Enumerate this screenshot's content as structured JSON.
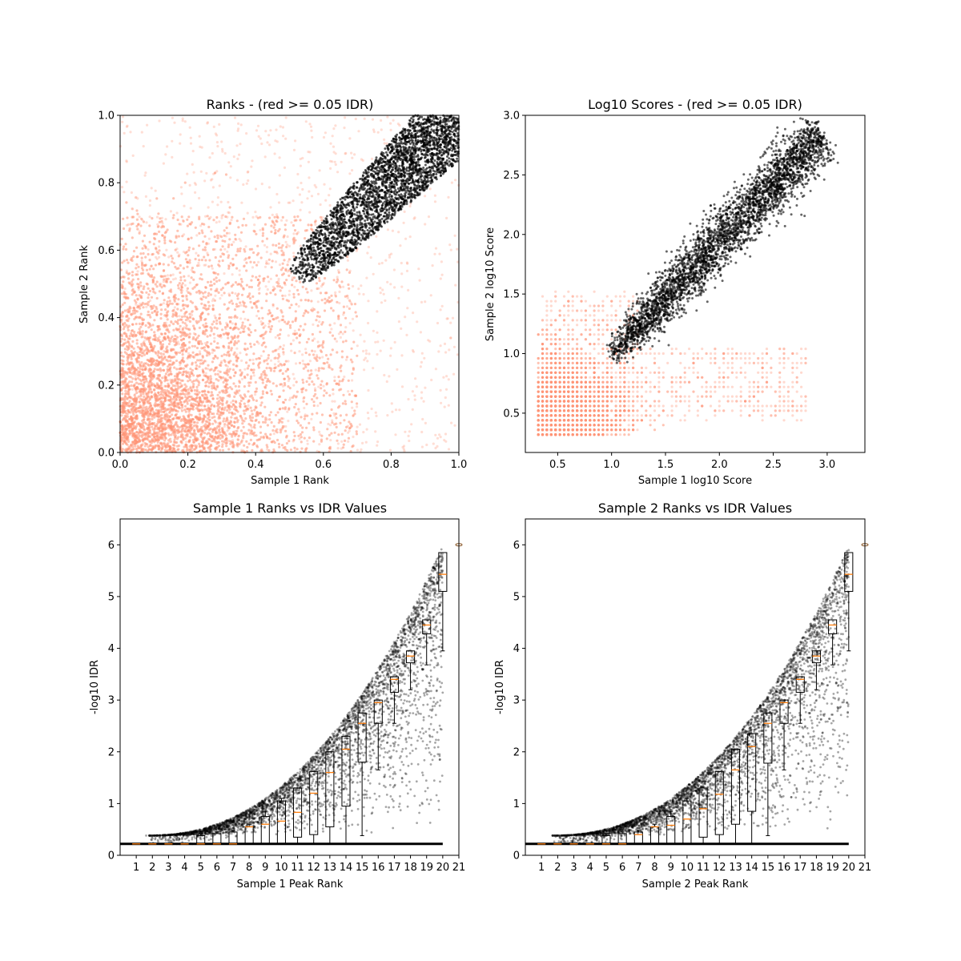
{
  "chart_data": [
    {
      "type": "scatter",
      "title": "Ranks - (red >= 0.05 IDR)",
      "xlabel": "Sample 1 Rank",
      "ylabel": "Sample 2 Rank",
      "xlim": [
        0.0,
        1.0
      ],
      "ylim": [
        0.0,
        1.0
      ],
      "xticks": [
        "0.0",
        "0.2",
        "0.4",
        "0.6",
        "0.8",
        "1.0"
      ],
      "yticks": [
        "0.0",
        "0.2",
        "0.4",
        "0.6",
        "0.8",
        "1.0"
      ],
      "colors": {
        "pass": "#000000",
        "fail": "#ff9375"
      },
      "series": [
        {
          "name": "",
          "color": "#ff9375",
          "region": "rank space, spread over [0,1]x[0,1], densest near origin",
          "x": [
            0.05,
            0.12,
            0.2,
            0.3,
            0.35,
            0.45,
            0.55,
            0.6,
            0.7,
            0.8,
            0.25,
            0.1
          ],
          "y": [
            0.05,
            0.2,
            0.1,
            0.35,
            0.25,
            0.45,
            0.2,
            0.4,
            0.3,
            0.55,
            0.7,
            0.9
          ]
        },
        {
          "name": "",
          "color": "#000000",
          "region": "tight band along diagonal from (0.5,0.5) to (1,1)",
          "x": [
            0.5,
            0.6,
            0.7,
            0.8,
            0.9,
            1.0
          ],
          "y": [
            0.52,
            0.64,
            0.73,
            0.82,
            0.91,
            1.0
          ]
        }
      ]
    },
    {
      "type": "scatter",
      "title": "Log10 Scores - (red >= 0.05 IDR)",
      "xlabel": "Sample 1 log10 Score",
      "ylabel": "Sample 2 log10 Score",
      "xlim": [
        0.2,
        3.35
      ],
      "ylim": [
        0.17,
        3.0
      ],
      "xticks": [
        "0.5",
        "1.0",
        "1.5",
        "2.0",
        "2.5",
        "3.0"
      ],
      "yticks": [
        "0.5",
        "1.0",
        "1.5",
        "2.0",
        "2.5",
        "3.0"
      ],
      "colors": {
        "pass": "#000000",
        "fail": "#ff9375"
      },
      "series": [
        {
          "name": "",
          "color": "#ff9375",
          "x": [
            0.35,
            0.5,
            0.7,
            0.9,
            1.1,
            1.3,
            1.6,
            2.0,
            2.4,
            2.8
          ],
          "y": [
            0.35,
            0.6,
            0.5,
            0.8,
            0.7,
            0.9,
            1.0,
            0.7,
            0.6,
            0.6
          ]
        },
        {
          "name": "",
          "color": "#000000",
          "x": [
            1.0,
            1.3,
            1.6,
            2.0,
            2.4,
            2.8,
            3.0
          ],
          "y": [
            0.95,
            1.3,
            1.6,
            1.95,
            2.3,
            2.65,
            2.8
          ]
        }
      ]
    },
    {
      "type": "scatter",
      "title": "Sample 1 Ranks vs IDR Values",
      "xlabel": "Sample 1 Peak Rank",
      "ylabel": "-log10 IDR",
      "xlim": [
        0,
        21
      ],
      "ylim": [
        0,
        6.5
      ],
      "xticks": [
        "1",
        "2",
        "3",
        "4",
        "5",
        "6",
        "7",
        "8",
        "9",
        "10",
        "11",
        "12",
        "13",
        "14",
        "15",
        "16",
        "17",
        "18",
        "19",
        "20",
        "21"
      ],
      "yticks": [
        "0",
        "1",
        "2",
        "3",
        "4",
        "5",
        "6"
      ],
      "boxplot": {
        "positions": [
          1,
          2,
          3,
          4,
          5,
          6,
          7,
          8,
          9,
          10,
          11,
          12,
          13,
          14,
          15,
          16,
          17,
          18,
          19,
          20
        ],
        "median": [
          0.22,
          0.22,
          0.22,
          0.22,
          0.22,
          0.22,
          0.22,
          0.55,
          0.6,
          0.66,
          0.83,
          1.2,
          1.6,
          2.05,
          2.55,
          2.95,
          3.4,
          3.85,
          4.45,
          5.43
        ],
        "q1": [
          0.22,
          0.22,
          0.22,
          0.22,
          0.22,
          0.22,
          0.22,
          0.22,
          0.22,
          0.22,
          0.35,
          0.4,
          0.55,
          0.95,
          1.8,
          2.55,
          3.15,
          3.72,
          4.28,
          5.1
        ],
        "q3": [
          0.22,
          0.22,
          0.22,
          0.22,
          0.38,
          0.42,
          0.45,
          0.55,
          0.75,
          1.05,
          1.3,
          1.62,
          2.0,
          2.3,
          2.75,
          3.0,
          3.45,
          3.95,
          4.55,
          5.85
        ],
        "whisker_low": [
          0.22,
          0.22,
          0.22,
          0.22,
          0.22,
          0.22,
          0.22,
          0.22,
          0.22,
          0.22,
          0.22,
          0.22,
          0.22,
          0.22,
          0.38,
          1.65,
          2.55,
          3.2,
          3.68,
          3.95
        ],
        "whisker_high": [
          0.22,
          0.22,
          0.22,
          0.22,
          0.42,
          0.45,
          0.48,
          0.6,
          0.85,
          1.1,
          1.3,
          1.62,
          2.0,
          2.3,
          2.75,
          3.0,
          3.45,
          3.95,
          4.55,
          5.85
        ]
      }
    },
    {
      "type": "scatter",
      "title": "Sample 2 Ranks vs IDR Values",
      "xlabel": "Sample 2 Peak Rank",
      "ylabel": "-log10 IDR",
      "xlim": [
        0,
        21
      ],
      "ylim": [
        0,
        6.5
      ],
      "xticks": [
        "1",
        "2",
        "3",
        "4",
        "5",
        "6",
        "7",
        "8",
        "9",
        "10",
        "11",
        "12",
        "13",
        "14",
        "15",
        "16",
        "17",
        "18",
        "19",
        "20",
        "21"
      ],
      "yticks": [
        "0",
        "1",
        "2",
        "3",
        "4",
        "5",
        "6"
      ],
      "boxplot": {
        "positions": [
          1,
          2,
          3,
          4,
          5,
          6,
          7,
          8,
          9,
          10,
          11,
          12,
          13,
          14,
          15,
          16,
          17,
          18,
          19,
          20
        ],
        "median": [
          0.22,
          0.22,
          0.22,
          0.22,
          0.22,
          0.22,
          0.4,
          0.55,
          0.58,
          0.7,
          0.9,
          1.18,
          1.65,
          2.1,
          2.55,
          2.95,
          3.4,
          3.85,
          4.45,
          5.43
        ],
        "q1": [
          0.22,
          0.22,
          0.22,
          0.22,
          0.22,
          0.22,
          0.22,
          0.22,
          0.22,
          0.22,
          0.35,
          0.4,
          0.6,
          0.85,
          1.78,
          2.55,
          3.15,
          3.72,
          4.28,
          5.1
        ],
        "q3": [
          0.22,
          0.22,
          0.22,
          0.22,
          0.38,
          0.42,
          0.45,
          0.55,
          0.75,
          1.05,
          1.3,
          1.62,
          2.05,
          2.35,
          2.75,
          3.0,
          3.45,
          3.95,
          4.55,
          5.85
        ],
        "whisker_low": [
          0.22,
          0.22,
          0.22,
          0.22,
          0.22,
          0.22,
          0.22,
          0.22,
          0.22,
          0.22,
          0.22,
          0.22,
          0.22,
          0.22,
          0.38,
          1.65,
          2.55,
          3.2,
          3.68,
          3.95
        ],
        "whisker_high": [
          0.22,
          0.22,
          0.22,
          0.22,
          0.42,
          0.45,
          0.48,
          0.6,
          0.85,
          1.1,
          1.3,
          1.62,
          2.05,
          2.35,
          2.75,
          3.0,
          3.45,
          3.95,
          4.55,
          5.85
        ]
      }
    }
  ]
}
